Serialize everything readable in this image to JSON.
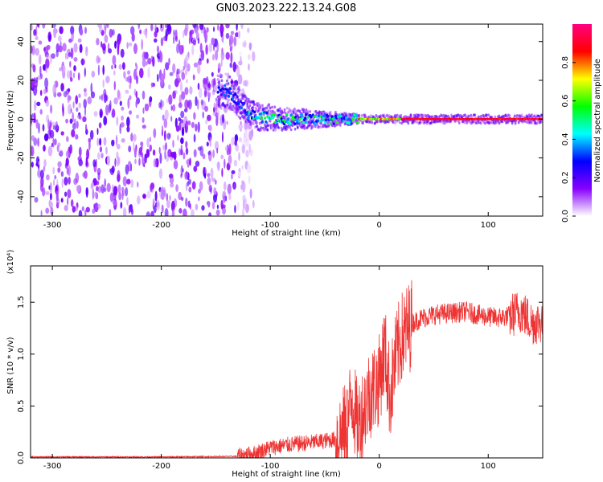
{
  "figure_title": "GN03.2023.222.13.24.G08",
  "chart_data": [
    {
      "type": "heatmap",
      "title": "",
      "xlabel": "Height of straight line (km)",
      "ylabel": "Frequency (Hz)",
      "xlim": [
        -320,
        150
      ],
      "ylim": [
        -50,
        49
      ],
      "x_ticks": [
        -300,
        -200,
        -100,
        0,
        100
      ],
      "y_ticks": [
        -40,
        -20,
        0,
        20,
        40
      ],
      "signal_trace": {
        "x": [
          -148,
          -140,
          -130,
          -120,
          -110,
          -100,
          -90,
          -80,
          -70,
          -60,
          -50,
          -40,
          -30,
          -20,
          0,
          50,
          100,
          150
        ],
        "y": [
          14,
          15,
          10,
          3,
          1,
          1,
          0,
          0,
          0,
          0,
          0,
          0,
          0,
          0,
          0,
          0,
          0,
          0
        ]
      },
      "noise_extent_x": [
        -320,
        -130
      ],
      "colorbar": {
        "label": "Normalized spectral amplitude",
        "range": [
          0,
          1
        ],
        "ticks": [
          0.0,
          0.2,
          0.4,
          0.6,
          0.8
        ],
        "colors": [
          "#ffffff",
          "#8800ff",
          "#0000ff",
          "#00ffff",
          "#00ff00",
          "#ffff00",
          "#ff0000",
          "#ff0080"
        ]
      }
    },
    {
      "type": "line",
      "title": "",
      "xlabel": "Height of straight line (km)",
      "ylabel": "SNR (10 * v/v)",
      "y_multiplier_label": "(x10⁴)",
      "xlim": [
        -320,
        150
      ],
      "ylim": [
        0,
        1.85
      ],
      "x_ticks": [
        -300,
        -200,
        -100,
        0,
        100
      ],
      "y_ticks": [
        0.0,
        0.5,
        1.0,
        1.5
      ],
      "color": "#ee3333",
      "series": [
        {
          "x": [
            -320,
            -200,
            -130,
            -115,
            -100,
            -80,
            -60,
            -40,
            -30,
            -25,
            -20,
            -10,
            0,
            5,
            10,
            15,
            20,
            30,
            40,
            50,
            60,
            70,
            80,
            90,
            100,
            110,
            120,
            130,
            140,
            150
          ],
          "values": [
            0.01,
            0.01,
            0.015,
            0.04,
            0.1,
            0.13,
            0.15,
            0.18,
            0.28,
            0.6,
            0.3,
            0.6,
            0.75,
            1.05,
            0.6,
            0.95,
            1.15,
            1.3,
            1.35,
            1.38,
            1.39,
            1.4,
            1.41,
            1.38,
            1.36,
            1.35,
            1.37,
            1.42,
            1.3,
            1.32
          ]
        }
      ]
    }
  ]
}
